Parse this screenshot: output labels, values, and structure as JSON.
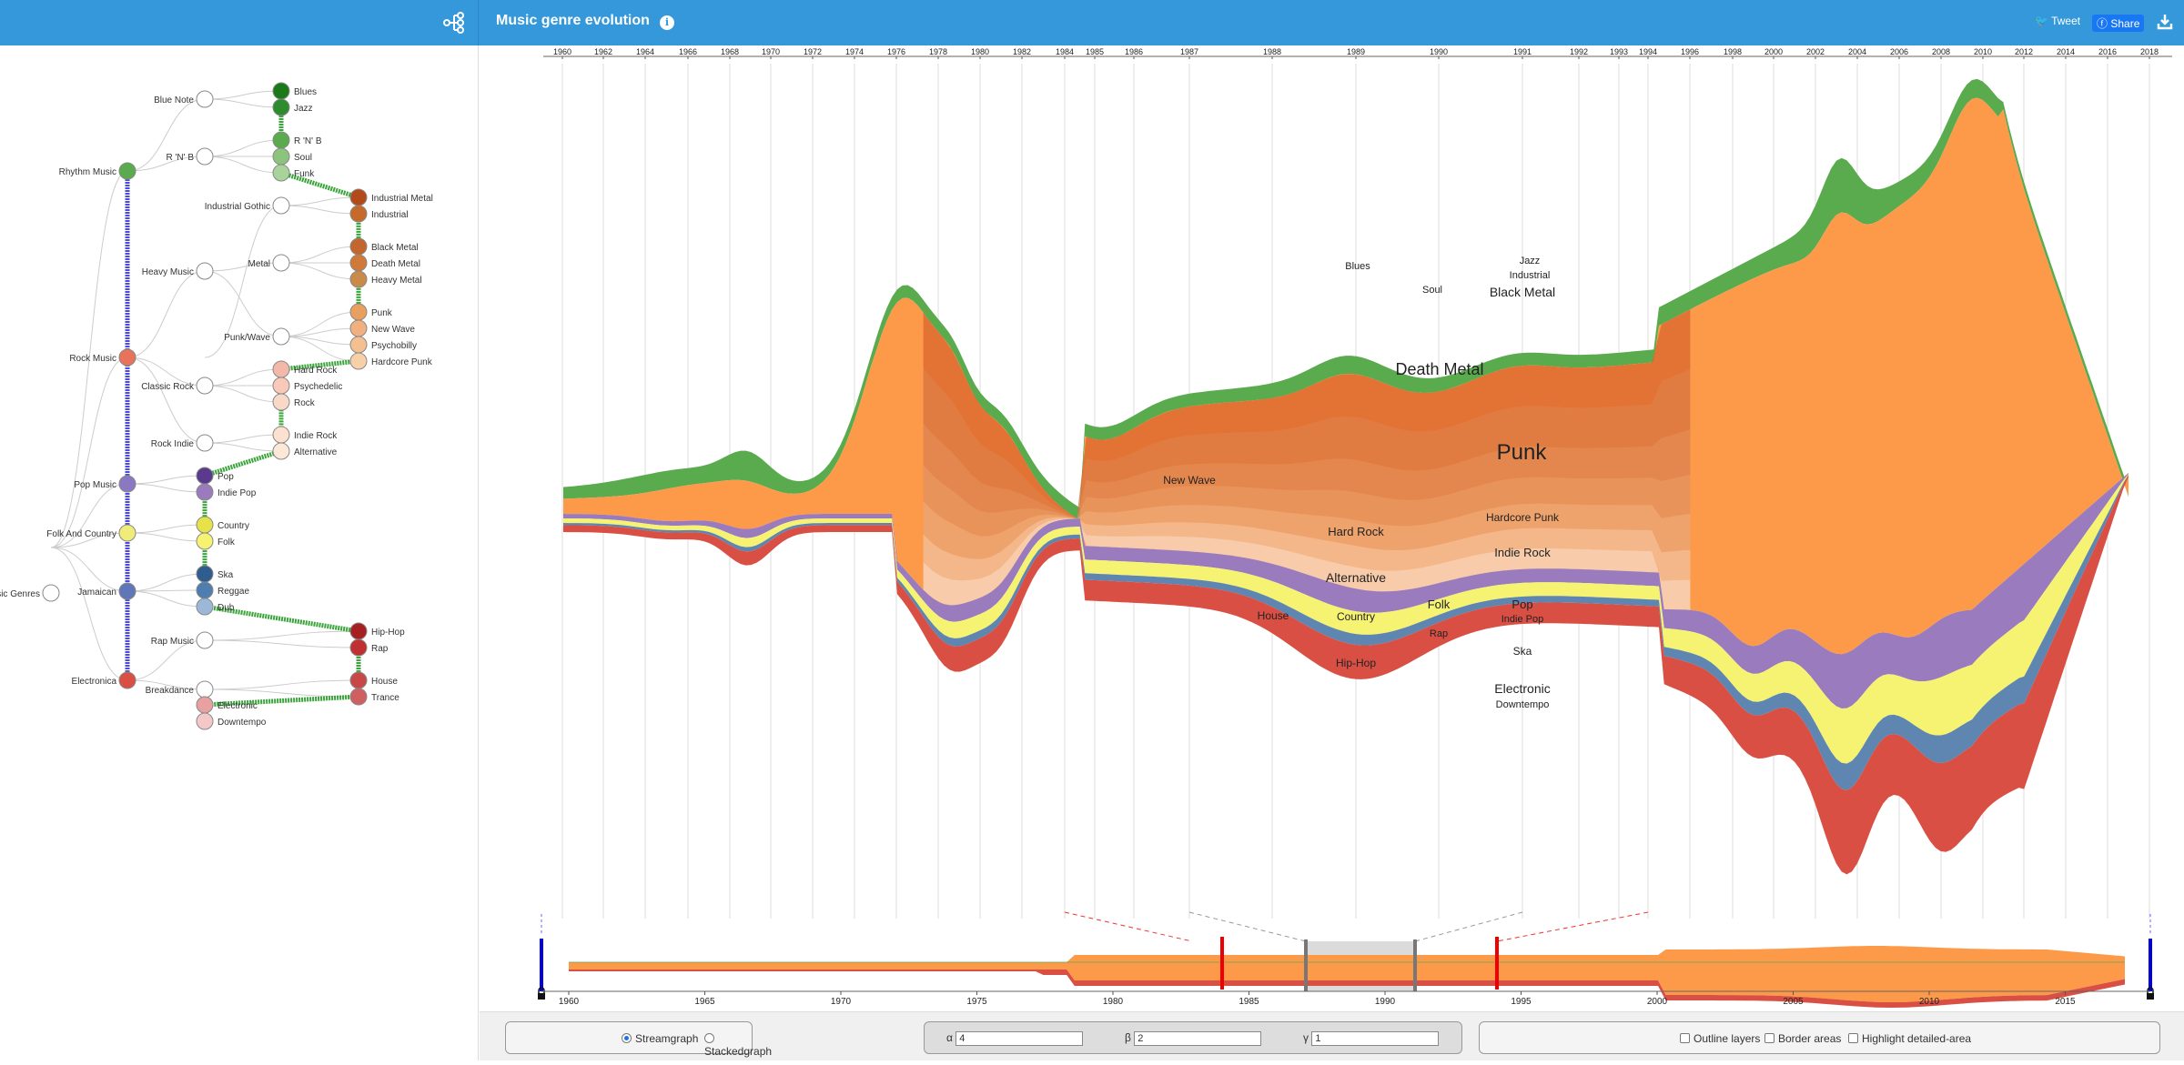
{
  "app": {
    "title": "Music genre evolution"
  },
  "header": {
    "tweet_label": "Tweet",
    "share_label": "Share"
  },
  "tree": {
    "root": "Music Genres",
    "level1": [
      "Rhythm Music",
      "Rock Music",
      "Pop Music",
      "Folk And Country",
      "Jamaican",
      "Electronica"
    ],
    "level2": [
      "Blue Note",
      "R 'N' B",
      "Industrial Gothic",
      "Heavy Music",
      "Metal",
      "Punk/Wave",
      "Classic Rock",
      "Rock Indie",
      "Rap Music",
      "Breakdance"
    ],
    "leaves": [
      "Blues",
      "Jazz",
      "R 'N' B",
      "Soul",
      "Funk",
      "Industrial Metal",
      "Industrial",
      "Black Metal",
      "Death Metal",
      "Heavy Metal",
      "Punk",
      "New Wave",
      "Psychobilly",
      "Hardcore Punk",
      "Hard Rock",
      "Psychedelic",
      "Rock",
      "Indie Rock",
      "Alternative",
      "Pop",
      "Indie Pop",
      "Country",
      "Folk",
      "Ska",
      "Reggae",
      "Dub",
      "Hip-Hop",
      "Rap",
      "House",
      "Trance",
      "Electronic",
      "Downtempo"
    ]
  },
  "timeline": {
    "top_ticks": [
      "1960",
      "1962",
      "1964",
      "1966",
      "1968",
      "1970",
      "1972",
      "1974",
      "1976",
      "1978",
      "1980",
      "1982",
      "1984",
      "1985",
      "1986",
      "1987",
      "1988",
      "1989",
      "1990",
      "1991",
      "1992",
      "1993",
      "1994",
      "1996",
      "1998",
      "2000",
      "2002",
      "2004",
      "2006",
      "2008",
      "2010",
      "2012",
      "2014",
      "2016",
      "2018"
    ],
    "bottom_ticks": [
      "1960",
      "1965",
      "1970",
      "1975",
      "1980",
      "1985",
      "1990",
      "1995",
      "2000",
      "2005",
      "2010",
      "2015"
    ]
  },
  "stream_labels": [
    "Blues",
    "Soul",
    "Jazz",
    "Industrial",
    "Black Metal",
    "Death Metal",
    "Punk",
    "New Wave",
    "Hard Rock",
    "Hardcore Punk",
    "Indie Rock",
    "Alternative",
    "House",
    "Country",
    "Folk",
    "Pop",
    "Indie Pop",
    "Rap",
    "Ska",
    "Hip-Hop",
    "Electronic",
    "Downtempo"
  ],
  "controls": {
    "streamgraph_label": "Streamgraph",
    "stackedgraph_label": "Stackedgraph",
    "alpha_label": "α",
    "alpha_value": "4",
    "beta_label": "β",
    "beta_value": "2",
    "gamma_label": "γ",
    "gamma_value": "1",
    "outline_label": "Outline layers",
    "border_label": "Border areas",
    "highlight_label": "Highlight detailed-area"
  },
  "colors": {
    "header": "#3498db",
    "orange": "#fd9a4a",
    "green": "#5aaa4e",
    "purple": "#9a7bbd",
    "yellow": "#f6f372",
    "red": "#d94f43",
    "blue": "#5f86b0"
  }
}
